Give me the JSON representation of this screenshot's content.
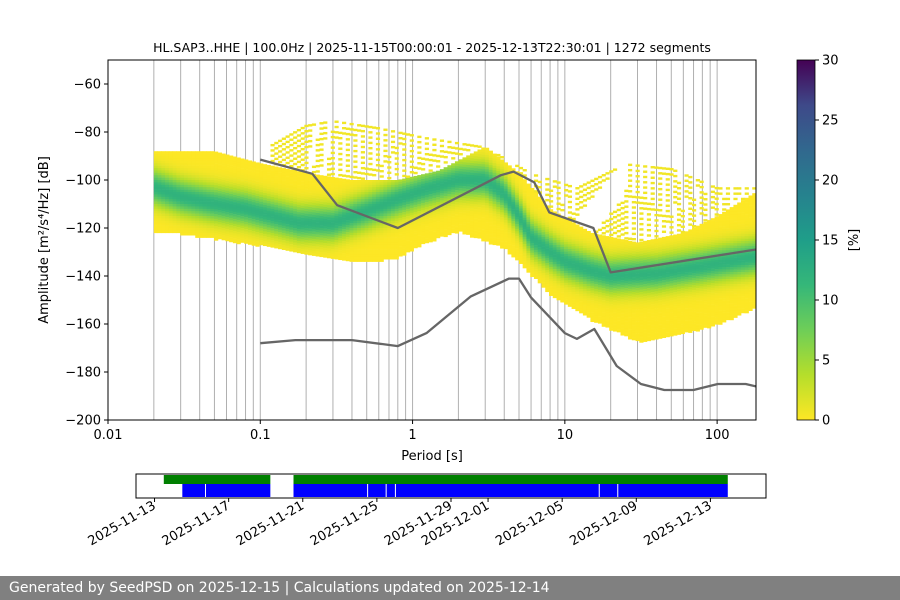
{
  "chart_data": [
    {
      "type": "heatmap",
      "title": "HL.SAP3..HHE | 100.0Hz | 2025-11-15T00:00:01 - 2025-12-13T22:30:01 | 1272 segments",
      "xlabel": "Period [s]",
      "ylabel": "Amplitude [m²/s⁴/Hz] [dB]",
      "x_scale": "log",
      "xlim": [
        0.01,
        180
      ],
      "ylim": [
        -200,
        -50
      ],
      "x_ticks": [
        0.01,
        0.1,
        1,
        10,
        100
      ],
      "x_tick_labels": [
        "0.01",
        "0.1",
        "1",
        "10",
        "100"
      ],
      "y_ticks": [
        -200,
        -180,
        -160,
        -140,
        -120,
        -100,
        -80,
        -60
      ],
      "y_tick_labels": [
        "−200",
        "−180",
        "−160",
        "−140",
        "−120",
        "−100",
        "−80",
        "−60"
      ],
      "grid": "vertical log grid lines",
      "heatmap": {
        "mode_curve": {
          "period": [
            0.02,
            0.03,
            0.05,
            0.08,
            0.12,
            0.18,
            0.3,
            0.5,
            0.8,
            1.2,
            2,
            3,
            4,
            5,
            6,
            8,
            10,
            15,
            20,
            40,
            80,
            180
          ],
          "db": [
            -103,
            -107,
            -110,
            -112,
            -115,
            -118,
            -118,
            -113,
            -108,
            -104,
            -100,
            -100,
            -106,
            -115,
            -124,
            -130,
            -134,
            -138,
            -140,
            -139,
            -136,
            -132
          ]
        },
        "band_upper": {
          "period": [
            0.02,
            0.05,
            0.1,
            0.2,
            0.4,
            0.8,
            1.5,
            3,
            5,
            8,
            15,
            30,
            60,
            100,
            180
          ],
          "db": [
            -88,
            -88,
            -93,
            -97,
            -100,
            -100,
            -96,
            -86,
            -97,
            -112,
            -122,
            -126,
            -122,
            -115,
            -105
          ]
        },
        "band_lower": {
          "period": [
            0.02,
            0.03,
            0.1,
            0.2,
            0.5,
            0.8,
            1.2,
            2,
            4,
            8,
            15,
            30,
            50,
            100,
            180
          ],
          "db": [
            -122,
            -122,
            -127,
            -131,
            -134,
            -132,
            -126,
            -121,
            -128,
            -147,
            -158,
            -167,
            -165,
            -160,
            -153
          ]
        },
        "sparse_upper": {
          "period": [
            0.12,
            0.2,
            0.3,
            0.6,
            1.2,
            3,
            6,
            12,
            25,
            50,
            100
          ],
          "db": [
            -85,
            -77,
            -75,
            -78,
            -82,
            -86,
            -97,
            -103,
            -93,
            -95,
            -103
          ]
        }
      },
      "nhnm": {
        "name": "",
        "period": [
          0.1,
          0.22,
          0.32,
          0.8,
          3.8,
          4.6,
          6.3,
          7.9,
          15.4,
          20,
          354.8
        ],
        "db": [
          -91.5,
          -97.4,
          -110.5,
          -120,
          -98,
          -96.5,
          -101,
          -113.5,
          -120,
          -138.5,
          -126
        ]
      },
      "nlnm": {
        "name": "",
        "period": [
          0.1,
          0.17,
          0.4,
          0.8,
          1.24,
          2.4,
          4.3,
          5,
          6,
          10,
          12,
          15.6,
          21.9,
          31.6,
          45,
          70,
          101,
          154,
          180
        ],
        "db": [
          -168,
          -166.7,
          -166.7,
          -169.2,
          -163.7,
          -148.6,
          -141.1,
          -141.1,
          -149,
          -163.8,
          -166.2,
          -162.1,
          -177.5,
          -185,
          -187.5,
          -187.5,
          -185,
          -185,
          -186
        ]
      }
    },
    {
      "type": "colorbar",
      "label": "[%]",
      "range": [
        0,
        30
      ],
      "ticks": [
        0,
        5,
        10,
        15,
        20,
        25,
        30
      ],
      "tick_labels": [
        "0",
        "5",
        "10",
        "15",
        "20",
        "25",
        "30"
      ],
      "colormap": "viridis_r"
    },
    {
      "type": "timeline",
      "xlim": [
        "2025-11-12T00:00",
        "2025-12-16T00:00"
      ],
      "tick_labels": [
        "2025-11-13",
        "2025-11-17",
        "2025-11-21",
        "2025-11-25",
        "2025-11-29",
        "2025-12-01",
        "2025-12-05",
        "2025-12-09",
        "2025-12-13"
      ],
      "tick_dates": [
        "2025-11-13",
        "2025-11-17",
        "2025-11-21",
        "2025-11-25",
        "2025-11-29",
        "2025-12-01",
        "2025-12-05",
        "2025-12-09",
        "2025-12-13"
      ],
      "coverage_green": [
        [
          "2025-11-13T12:00",
          "2025-11-19T06:00"
        ],
        [
          "2025-11-20T12:00",
          "2025-12-13T22:30"
        ]
      ],
      "coverage_blue": [
        [
          "2025-11-14T12:00",
          "2025-11-19T06:00"
        ],
        [
          "2025-11-20T12:00",
          "2025-12-13T22:30"
        ]
      ],
      "gaps": [
        "2025-11-15T18:00",
        "2025-11-24T12:00",
        "2025-11-25T12:00",
        "2025-11-26T00:00",
        "2025-12-07T00:00",
        "2025-12-08T00:00"
      ]
    }
  ],
  "colors": {
    "grid": "#b0b0b0",
    "noise_model": "#666666",
    "coverage_green": "#008000",
    "coverage_blue": "#0000ff",
    "footer_bg": "#808080"
  },
  "footer": {
    "text": "Generated by SeedPSD on 2025-12-15 | Calculations updated on 2025-12-14"
  }
}
